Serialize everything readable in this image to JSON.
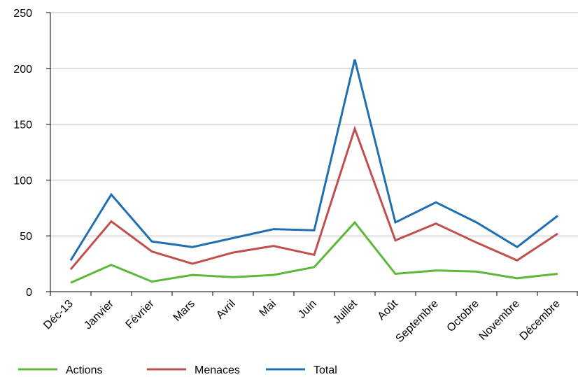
{
  "chart_data": {
    "type": "line",
    "title": "",
    "xlabel": "",
    "ylabel": "",
    "categories": [
      "Déc-13",
      "Janvier",
      "Février",
      "Mars",
      "Avril",
      "Mai",
      "Juin",
      "Juillet",
      "Août",
      "Septembre",
      "Octobre",
      "Novembre",
      "Décembre"
    ],
    "ylim": [
      0,
      250
    ],
    "yticks": [
      "0",
      "50",
      "100",
      "150",
      "200",
      "250"
    ],
    "grid": "horizontal",
    "legend_position": "bottom-left",
    "series": [
      {
        "name": "Actions",
        "color": "#5cb83a",
        "values": [
          8,
          24,
          9,
          15,
          13,
          15,
          22,
          62,
          16,
          19,
          18,
          12,
          16
        ]
      },
      {
        "name": "Menaces",
        "color": "#c0504d",
        "values": [
          20,
          63,
          36,
          25,
          35,
          41,
          33,
          146,
          46,
          61,
          44,
          28,
          52
        ]
      },
      {
        "name": "Total",
        "color": "#1f6fb2",
        "values": [
          28,
          87,
          45,
          40,
          48,
          56,
          55,
          208,
          62,
          80,
          62,
          40,
          68
        ]
      }
    ]
  }
}
